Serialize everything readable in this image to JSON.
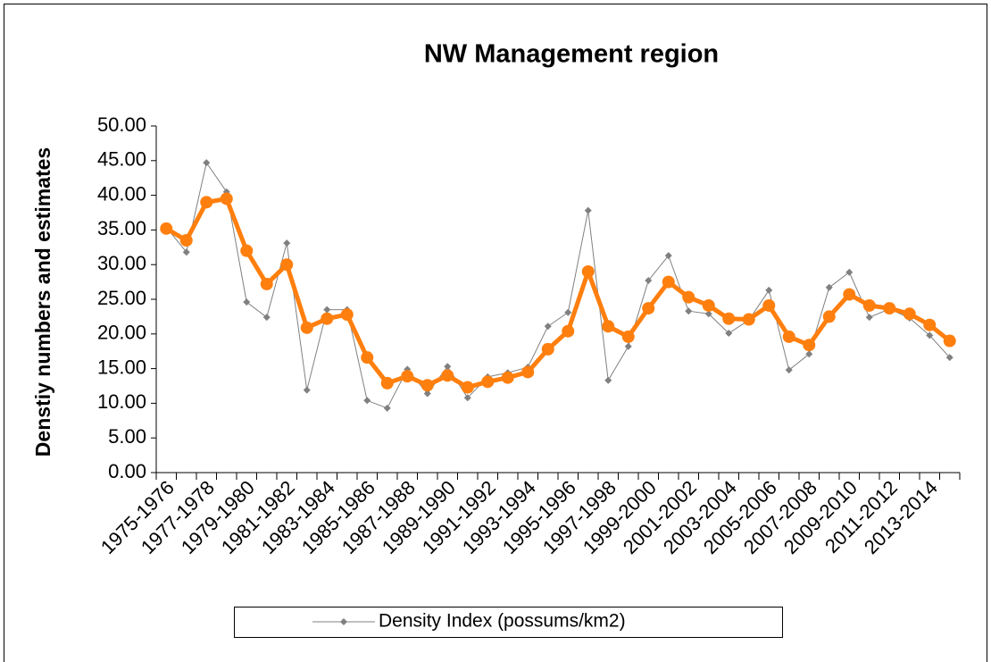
{
  "chart_data": {
    "type": "line",
    "title": "NW Management region",
    "y_label": "Denstiy numbers and estimates",
    "categories": [
      "1975-1976",
      null,
      "1977-1978",
      null,
      "1979-1980",
      null,
      "1981-1982",
      null,
      "1983-1984",
      null,
      "1985-1986",
      null,
      "1987-1988",
      null,
      "1989-1990",
      null,
      "1991-1992",
      null,
      "1993-1994",
      null,
      "1995-1996",
      null,
      "1997-1998",
      null,
      "1999-2000",
      null,
      "2001-2002",
      null,
      "2003-2004",
      null,
      "2005-2006",
      null,
      "2007-2008",
      null,
      "2009-2010",
      null,
      "2011-2012",
      null,
      "2013-2014",
      null
    ],
    "series": [
      {
        "name": "Density Index (possums/km2)",
        "color": "#808080",
        "marker": "diamond",
        "values": [
          35.4,
          31.8,
          44.7,
          40.5,
          24.6,
          22.4,
          33.1,
          11.9,
          23.5,
          23.5,
          10.4,
          9.3,
          14.9,
          11.4,
          15.3,
          10.8,
          13.8,
          14.4,
          15.2,
          21.1,
          23.1,
          37.8,
          13.3,
          18.2,
          27.7,
          31.3,
          23.3,
          22.9,
          20.1,
          22.0,
          26.3,
          14.8,
          17.1,
          26.7,
          28.9,
          22.4,
          23.6,
          22.3,
          19.8,
          16.6
        ]
      },
      {
        "color": "#ff7f0e",
        "marker": "circle",
        "values": [
          35.2,
          33.5,
          39.0,
          39.5,
          32.0,
          27.2,
          30.0,
          20.9,
          22.2,
          22.8,
          16.6,
          12.9,
          13.9,
          12.6,
          14.0,
          12.3,
          13.1,
          13.7,
          14.5,
          17.8,
          20.4,
          29.0,
          21.1,
          19.6,
          23.7,
          27.5,
          25.3,
          24.1,
          22.2,
          22.1,
          24.1,
          19.6,
          18.4,
          22.5,
          25.7,
          24.1,
          23.7,
          22.9,
          21.3,
          19.0
        ]
      }
    ],
    "ylim": [
      0,
      50
    ],
    "yticks": [
      {
        "value": 0,
        "label": "0.00"
      },
      {
        "value": 5,
        "label": "5.00"
      },
      {
        "value": 10,
        "label": "10.00"
      },
      {
        "value": 15,
        "label": "15.00"
      },
      {
        "value": 20,
        "label": "20.00"
      },
      {
        "value": 25,
        "label": "25.00"
      },
      {
        "value": 30,
        "label": "30.00"
      },
      {
        "value": 35,
        "label": "35.00"
      },
      {
        "value": 40,
        "label": "40.00"
      },
      {
        "value": 45,
        "label": "45.00"
      },
      {
        "value": 50,
        "label": "50.00"
      }
    ],
    "grid": false,
    "legend": "bottom"
  }
}
